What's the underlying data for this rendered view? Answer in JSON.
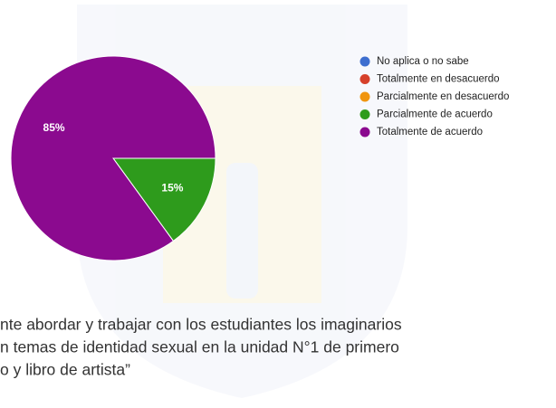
{
  "chart_data": {
    "type": "pie",
    "categories": [
      "No aplica o no sabe",
      "Totalmente en desacuerdo",
      "Parcialmente en desacuerdo",
      "Parcialmente de acuerdo",
      "Totalmente de acuerdo"
    ],
    "values": [
      0,
      0,
      0,
      15,
      85
    ],
    "value_labels": [
      null,
      null,
      null,
      "15%",
      "85%"
    ],
    "colors": [
      "#3d6ecf",
      "#d6402a",
      "#f0950f",
      "#2e9b1c",
      "#8b0a8f"
    ],
    "legend": "right"
  },
  "caption_lines": [
    "nte abordar y trabajar con los estudiantes los imaginarios",
    "n temas de identidad sexual en la unidad N°1 de primero",
    "o y libro de artista”"
  ]
}
